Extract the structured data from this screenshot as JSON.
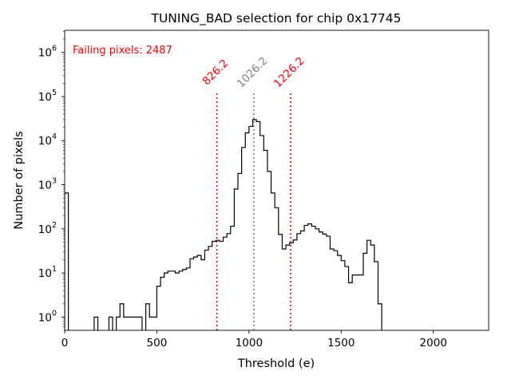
{
  "chart_data": {
    "type": "histogram",
    "title": "TUNING_BAD selection for chip 0x17745",
    "xlabel": "Threshold (e)",
    "ylabel": "Number of pixels",
    "xlim": [
      0,
      2300
    ],
    "ylim_log10": [
      -0.3,
      6.5
    ],
    "yscale": "log",
    "x_ticks": [
      0,
      500,
      1000,
      1500,
      2000
    ],
    "x_tick_labels": [
      "0",
      "500",
      "1000",
      "1500",
      "2000"
    ],
    "y_ticks": [
      1,
      10,
      100,
      1000,
      10000,
      100000,
      1000000
    ],
    "y_tick_bases": [
      "10",
      "10",
      "10",
      "10",
      "10",
      "10",
      "10"
    ],
    "y_tick_exponents": [
      "0",
      "1",
      "2",
      "3",
      "4",
      "5",
      "6"
    ],
    "annotation": {
      "text": "Failing pixels: 2487",
      "color": "#ff0000"
    },
    "vlines": [
      {
        "x": 826.2,
        "label": "826.2",
        "color": "#ff0000"
      },
      {
        "x": 1026.2,
        "label": "1026.2",
        "color": "#808080"
      },
      {
        "x": 1226.2,
        "label": "1226.2",
        "color": "#ff0000"
      }
    ],
    "bin_width": 20,
    "bins": [
      [
        0,
        650
      ],
      [
        160,
        1
      ],
      [
        240,
        1
      ],
      [
        280,
        1
      ],
      [
        300,
        2
      ],
      [
        320,
        1
      ],
      [
        340,
        1
      ],
      [
        360,
        1
      ],
      [
        380,
        1
      ],
      [
        400,
        1
      ],
      [
        440,
        2
      ],
      [
        460,
        1
      ],
      [
        480,
        1
      ],
      [
        500,
        5
      ],
      [
        520,
        8
      ],
      [
        540,
        10
      ],
      [
        560,
        11
      ],
      [
        580,
        11
      ],
      [
        600,
        10
      ],
      [
        620,
        11
      ],
      [
        640,
        12
      ],
      [
        660,
        13
      ],
      [
        680,
        21
      ],
      [
        700,
        23
      ],
      [
        720,
        25
      ],
      [
        740,
        20
      ],
      [
        760,
        33
      ],
      [
        780,
        40
      ],
      [
        800,
        52
      ],
      [
        820,
        55
      ],
      [
        840,
        52
      ],
      [
        860,
        65
      ],
      [
        880,
        78
      ],
      [
        900,
        115
      ],
      [
        920,
        800
      ],
      [
        940,
        1800
      ],
      [
        960,
        7000
      ],
      [
        980,
        15000
      ],
      [
        1000,
        21000
      ],
      [
        1020,
        30000
      ],
      [
        1040,
        27000
      ],
      [
        1060,
        13000
      ],
      [
        1080,
        6000
      ],
      [
        1100,
        2000
      ],
      [
        1120,
        650
      ],
      [
        1140,
        300
      ],
      [
        1160,
        75
      ],
      [
        1180,
        35
      ],
      [
        1200,
        43
      ],
      [
        1220,
        48
      ],
      [
        1240,
        56
      ],
      [
        1260,
        78
      ],
      [
        1280,
        90
      ],
      [
        1300,
        120
      ],
      [
        1320,
        130
      ],
      [
        1340,
        115
      ],
      [
        1360,
        100
      ],
      [
        1380,
        85
      ],
      [
        1400,
        76
      ],
      [
        1420,
        68
      ],
      [
        1440,
        35
      ],
      [
        1460,
        32
      ],
      [
        1480,
        25
      ],
      [
        1500,
        19
      ],
      [
        1520,
        14
      ],
      [
        1540,
        6
      ],
      [
        1560,
        9
      ],
      [
        1580,
        9
      ],
      [
        1600,
        9
      ],
      [
        1620,
        28
      ],
      [
        1640,
        55
      ],
      [
        1660,
        43
      ],
      [
        1680,
        18
      ],
      [
        1700,
        2
      ]
    ]
  }
}
